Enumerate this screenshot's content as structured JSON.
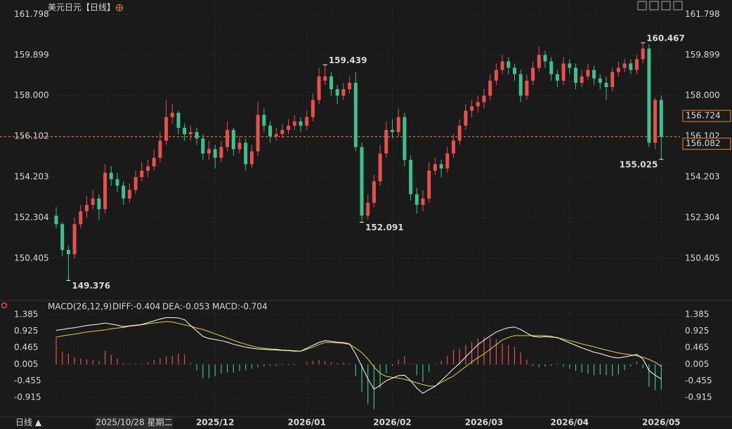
{
  "chart_data": {
    "type": "candlestick",
    "title": "美元日元",
    "period": "【日线】",
    "up_color": "#e8504f",
    "down_color": "#3fbf8c",
    "grid": true,
    "ylim": [
      148.7,
      162.3
    ],
    "yticks": [
      161.798,
      159.899,
      {
        "value": 158.0,
        "label": "158.000"
      },
      156.102,
      154.203,
      152.304,
      150.405
    ],
    "categories": [
      null,
      null,
      null,
      null,
      null,
      null,
      null,
      null,
      null,
      null,
      null,
      null,
      null,
      null,
      null,
      null,
      null,
      null,
      null,
      null,
      null,
      null,
      null,
      null,
      null,
      null,
      "2025/12",
      null,
      null,
      null,
      null,
      null,
      null,
      null,
      null,
      null,
      null,
      null,
      null,
      null,
      null,
      "2026/01",
      null,
      null,
      null,
      null,
      null,
      null,
      null,
      null,
      null,
      null,
      null,
      null,
      null,
      "2026/02",
      null,
      null,
      null,
      null,
      null,
      null,
      null,
      null,
      null,
      null,
      null,
      null,
      null,
      null,
      "2026/03",
      null,
      null,
      null,
      null,
      null,
      null,
      null,
      null,
      null,
      null,
      null,
      null,
      null,
      "2026/04",
      null,
      null,
      null,
      null,
      null,
      null,
      null,
      null,
      null,
      null,
      null,
      null,
      null,
      null,
      "2026/05"
    ],
    "candles": [
      [
        152.4,
        152.8,
        151.8,
        152.0
      ],
      [
        152.0,
        152.1,
        150.5,
        150.8
      ],
      [
        150.8,
        151.0,
        149.376,
        150.6
      ],
      [
        150.6,
        152.3,
        150.4,
        152.0
      ],
      [
        152.0,
        152.9,
        151.8,
        152.6
      ],
      [
        152.6,
        153.3,
        152.3,
        152.9
      ],
      [
        152.9,
        153.6,
        152.7,
        153.2
      ],
      [
        153.2,
        153.4,
        152.2,
        152.7
      ],
      [
        152.7,
        154.8,
        152.5,
        154.4
      ],
      [
        154.4,
        154.7,
        153.8,
        154.1
      ],
      [
        154.1,
        154.4,
        153.5,
        153.8
      ],
      [
        153.8,
        154.0,
        152.9,
        153.2
      ],
      [
        153.2,
        153.9,
        153.0,
        153.6
      ],
      [
        153.6,
        154.5,
        153.4,
        154.2
      ],
      [
        154.2,
        154.9,
        154.0,
        154.5
      ],
      [
        154.5,
        155.0,
        154.2,
        154.7
      ],
      [
        154.7,
        155.5,
        154.5,
        155.1
      ],
      [
        155.1,
        156.3,
        154.9,
        155.9
      ],
      [
        155.9,
        157.8,
        155.7,
        157.0
      ],
      [
        157.0,
        157.6,
        156.7,
        157.2
      ],
      [
        157.2,
        157.3,
        156.2,
        156.5
      ],
      [
        156.5,
        156.7,
        155.9,
        156.2
      ],
      [
        156.2,
        156.6,
        155.9,
        156.3
      ],
      [
        156.3,
        156.5,
        155.7,
        156.0
      ],
      [
        156.0,
        156.2,
        155.0,
        155.3
      ],
      [
        155.3,
        155.9,
        155.0,
        155.5
      ],
      [
        155.5,
        155.7,
        154.6,
        155.1
      ],
      [
        155.1,
        155.9,
        154.9,
        155.6
      ],
      [
        155.6,
        156.8,
        155.4,
        156.4
      ],
      [
        156.4,
        156.5,
        155.2,
        155.5
      ],
      [
        155.5,
        156.1,
        155.3,
        155.8
      ],
      [
        155.8,
        156.0,
        154.5,
        154.8
      ],
      [
        154.8,
        155.7,
        154.6,
        155.4
      ],
      [
        155.4,
        157.7,
        155.2,
        157.1
      ],
      [
        157.1,
        157.4,
        156.3,
        156.6
      ],
      [
        156.6,
        156.8,
        155.8,
        156.1
      ],
      [
        156.1,
        156.5,
        155.9,
        156.2
      ],
      [
        156.2,
        156.7,
        156.0,
        156.4
      ],
      [
        156.4,
        156.9,
        156.2,
        156.6
      ],
      [
        156.6,
        157.1,
        156.4,
        156.8
      ],
      [
        156.8,
        157.0,
        156.3,
        156.6
      ],
      [
        156.6,
        157.3,
        156.4,
        157.0
      ],
      [
        157.0,
        158.1,
        156.8,
        157.8
      ],
      [
        157.8,
        159.3,
        157.6,
        158.9
      ],
      [
        158.7,
        159.439,
        158.5,
        158.9
      ],
      [
        158.9,
        159.1,
        158.0,
        158.3
      ],
      [
        158.3,
        158.5,
        157.6,
        158.0
      ],
      [
        158.0,
        158.6,
        157.8,
        158.3
      ],
      [
        158.3,
        158.9,
        158.1,
        158.6
      ],
      [
        158.6,
        159.1,
        155.4,
        155.6
      ],
      [
        155.6,
        155.8,
        152.091,
        152.4
      ],
      [
        152.4,
        153.4,
        152.2,
        153.0
      ],
      [
        153.0,
        154.3,
        152.8,
        154.0
      ],
      [
        154.0,
        155.7,
        153.8,
        155.3
      ],
      [
        155.3,
        156.8,
        155.1,
        156.4
      ],
      [
        156.4,
        156.9,
        156.0,
        156.3
      ],
      [
        156.3,
        157.4,
        156.1,
        157.0
      ],
      [
        157.0,
        157.2,
        154.7,
        155.0
      ],
      [
        155.0,
        155.2,
        153.1,
        153.4
      ],
      [
        153.4,
        153.7,
        152.5,
        152.9
      ],
      [
        152.9,
        153.6,
        152.6,
        153.2
      ],
      [
        153.2,
        154.9,
        153.0,
        154.5
      ],
      [
        154.5,
        155.1,
        154.3,
        154.8
      ],
      [
        154.8,
        155.0,
        154.2,
        154.6
      ],
      [
        154.6,
        155.6,
        154.4,
        155.3
      ],
      [
        155.3,
        156.2,
        155.1,
        155.9
      ],
      [
        155.9,
        156.9,
        155.7,
        156.6
      ],
      [
        156.6,
        157.6,
        156.4,
        157.3
      ],
      [
        157.3,
        157.8,
        157.0,
        157.5
      ],
      [
        157.5,
        158.0,
        157.2,
        157.7
      ],
      [
        157.7,
        158.3,
        157.4,
        158.0
      ],
      [
        158.0,
        159.0,
        157.8,
        158.7
      ],
      [
        158.7,
        159.5,
        158.5,
        159.2
      ],
      [
        159.2,
        159.9,
        159.0,
        159.6
      ],
      [
        159.6,
        159.8,
        159.0,
        159.3
      ],
      [
        159.3,
        159.5,
        158.7,
        159.0
      ],
      [
        159.0,
        159.2,
        157.7,
        158.0
      ],
      [
        158.0,
        159.0,
        157.8,
        158.7
      ],
      [
        158.7,
        159.6,
        158.5,
        159.3
      ],
      [
        159.3,
        160.3,
        159.1,
        159.9
      ],
      [
        159.9,
        160.1,
        159.3,
        159.6
      ],
      [
        159.6,
        159.8,
        158.7,
        159.0
      ],
      [
        159.0,
        159.2,
        158.4,
        158.7
      ],
      [
        158.7,
        159.8,
        158.5,
        159.5
      ],
      [
        159.5,
        159.7,
        159.0,
        159.3
      ],
      [
        159.3,
        159.5,
        158.3,
        158.6
      ],
      [
        158.6,
        159.2,
        158.4,
        158.9
      ],
      [
        158.9,
        159.5,
        158.7,
        159.2
      ],
      [
        159.2,
        159.4,
        158.5,
        158.8
      ],
      [
        158.8,
        159.0,
        158.3,
        158.6
      ],
      [
        158.6,
        158.9,
        157.8,
        158.4
      ],
      [
        158.4,
        159.3,
        158.2,
        159.1
      ],
      [
        159.1,
        159.6,
        158.9,
        159.3
      ],
      [
        159.3,
        159.7,
        159.1,
        159.5
      ],
      [
        159.5,
        159.7,
        159.0,
        159.2
      ],
      [
        159.2,
        159.9,
        159.0,
        159.7
      ],
      [
        159.7,
        160.467,
        159.5,
        160.2
      ],
      [
        160.2,
        160.4,
        155.6,
        155.8
      ],
      [
        155.8,
        157.9,
        155.5,
        157.8
      ],
      [
        157.8,
        158.0,
        155.025,
        156.082
      ]
    ],
    "max_marks": [
      159.439,
      160.467
    ],
    "min_marks": [
      149.376,
      152.091,
      155.025
    ],
    "price_tags": [
      156.724,
      156.082
    ],
    "macd": {
      "legend": {
        "title": "MACD(26,12,9)",
        "diff": "DIFF:-0.404",
        "dea": "DEA:-0.053",
        "macd": "MACD:-0.704"
      },
      "diff_color": "#ffffff",
      "dea_color": "#e6d13a",
      "ylim": [
        -1.383,
        1.541
      ],
      "yticks": [
        1.385,
        0.925,
        0.465,
        0.005,
        -0.455,
        -0.915
      ],
      "diff": [
        0.95,
        0.97,
        1.0,
        1.02,
        1.05,
        1.08,
        1.1,
        1.12,
        1.15,
        1.12,
        1.09,
        1.05,
        1.07,
        1.09,
        1.11,
        1.16,
        1.21,
        1.26,
        1.3,
        1.3,
        1.29,
        1.24,
        1.08,
        0.93,
        0.78,
        0.72,
        0.69,
        0.66,
        0.62,
        0.56,
        0.52,
        0.48,
        0.45,
        0.43,
        0.42,
        0.41,
        0.4,
        0.39,
        0.38,
        0.37,
        0.37,
        0.45,
        0.53,
        0.61,
        0.66,
        0.64,
        0.62,
        0.61,
        0.57,
        0.29,
        -0.05,
        -0.4,
        -0.69,
        -0.58,
        -0.45,
        -0.38,
        -0.31,
        -0.3,
        -0.45,
        -0.66,
        -0.8,
        -0.7,
        -0.61,
        -0.45,
        -0.29,
        -0.12,
        0.03,
        0.21,
        0.38,
        0.55,
        0.67,
        0.79,
        0.9,
        0.97,
        1.02,
        1.04,
        0.97,
        0.87,
        0.78,
        0.76,
        0.77,
        0.76,
        0.75,
        0.67,
        0.6,
        0.53,
        0.46,
        0.4,
        0.34,
        0.3,
        0.25,
        0.2,
        0.18,
        0.21,
        0.24,
        0.28,
        0.15,
        -0.17,
        -0.3,
        -0.404
      ],
      "dea": [
        0.76,
        0.79,
        0.82,
        0.84,
        0.87,
        0.9,
        0.92,
        0.94,
        0.96,
        0.99,
        1.01,
        1.03,
        1.06,
        1.08,
        1.1,
        1.13,
        1.15,
        1.17,
        1.19,
        1.18,
        1.14,
        1.1,
        1.06,
        1.01,
        0.97,
        0.91,
        0.85,
        0.79,
        0.73,
        0.67,
        0.61,
        0.56,
        0.51,
        0.47,
        0.45,
        0.43,
        0.42,
        0.4,
        0.39,
        0.38,
        0.37,
        0.42,
        0.48,
        0.55,
        0.61,
        0.61,
        0.6,
        0.58,
        0.56,
        0.45,
        0.33,
        0.15,
        -0.07,
        -0.25,
        -0.33,
        -0.36,
        -0.38,
        -0.41,
        -0.46,
        -0.51,
        -0.56,
        -0.6,
        -0.6,
        -0.5,
        -0.41,
        -0.32,
        -0.19,
        -0.06,
        0.07,
        0.19,
        0.29,
        0.42,
        0.55,
        0.68,
        0.75,
        0.8,
        0.8,
        0.8,
        0.8,
        0.8,
        0.8,
        0.78,
        0.74,
        0.7,
        0.66,
        0.62,
        0.57,
        0.53,
        0.49,
        0.44,
        0.4,
        0.36,
        0.32,
        0.29,
        0.27,
        0.24,
        0.2,
        0.14,
        0.06,
        -0.053
      ],
      "hist": [
        0.76,
        0.36,
        0.3,
        0.2,
        0.16,
        0.14,
        0.12,
        0.1,
        0.38,
        0.26,
        0.16,
        0.04,
        0.02,
        0.02,
        0.02,
        0.06,
        0.12,
        0.18,
        0.22,
        0.24,
        0.3,
        0.28,
        0.04,
        -0.16,
        -0.38,
        -0.38,
        -0.32,
        -0.26,
        -0.22,
        -0.22,
        -0.18,
        -0.16,
        -0.12,
        -0.08,
        -0.06,
        -0.04,
        -0.04,
        -0.02,
        -0.02,
        -0.02,
        0.0,
        0.06,
        0.1,
        0.12,
        0.1,
        0.06,
        0.04,
        0.06,
        0.02,
        -0.32,
        -0.76,
        -1.1,
        -1.24,
        -0.66,
        -0.24,
        -0.04,
        0.14,
        0.22,
        0.02,
        -0.3,
        -0.48,
        -0.2,
        -0.02,
        0.1,
        0.24,
        0.4,
        0.44,
        0.54,
        0.62,
        0.72,
        0.76,
        0.74,
        0.7,
        0.58,
        0.54,
        0.48,
        0.34,
        0.14,
        -0.04,
        -0.08,
        -0.06,
        -0.04,
        0.02,
        -0.06,
        -0.12,
        -0.18,
        -0.22,
        -0.26,
        -0.3,
        -0.28,
        -0.3,
        -0.32,
        -0.28,
        -0.16,
        -0.06,
        0.08,
        -0.1,
        -0.62,
        -0.72,
        -0.704
      ]
    },
    "footer": {
      "period": "日线 ▲",
      "cursor_date": "2025/10/28 星期二"
    }
  }
}
